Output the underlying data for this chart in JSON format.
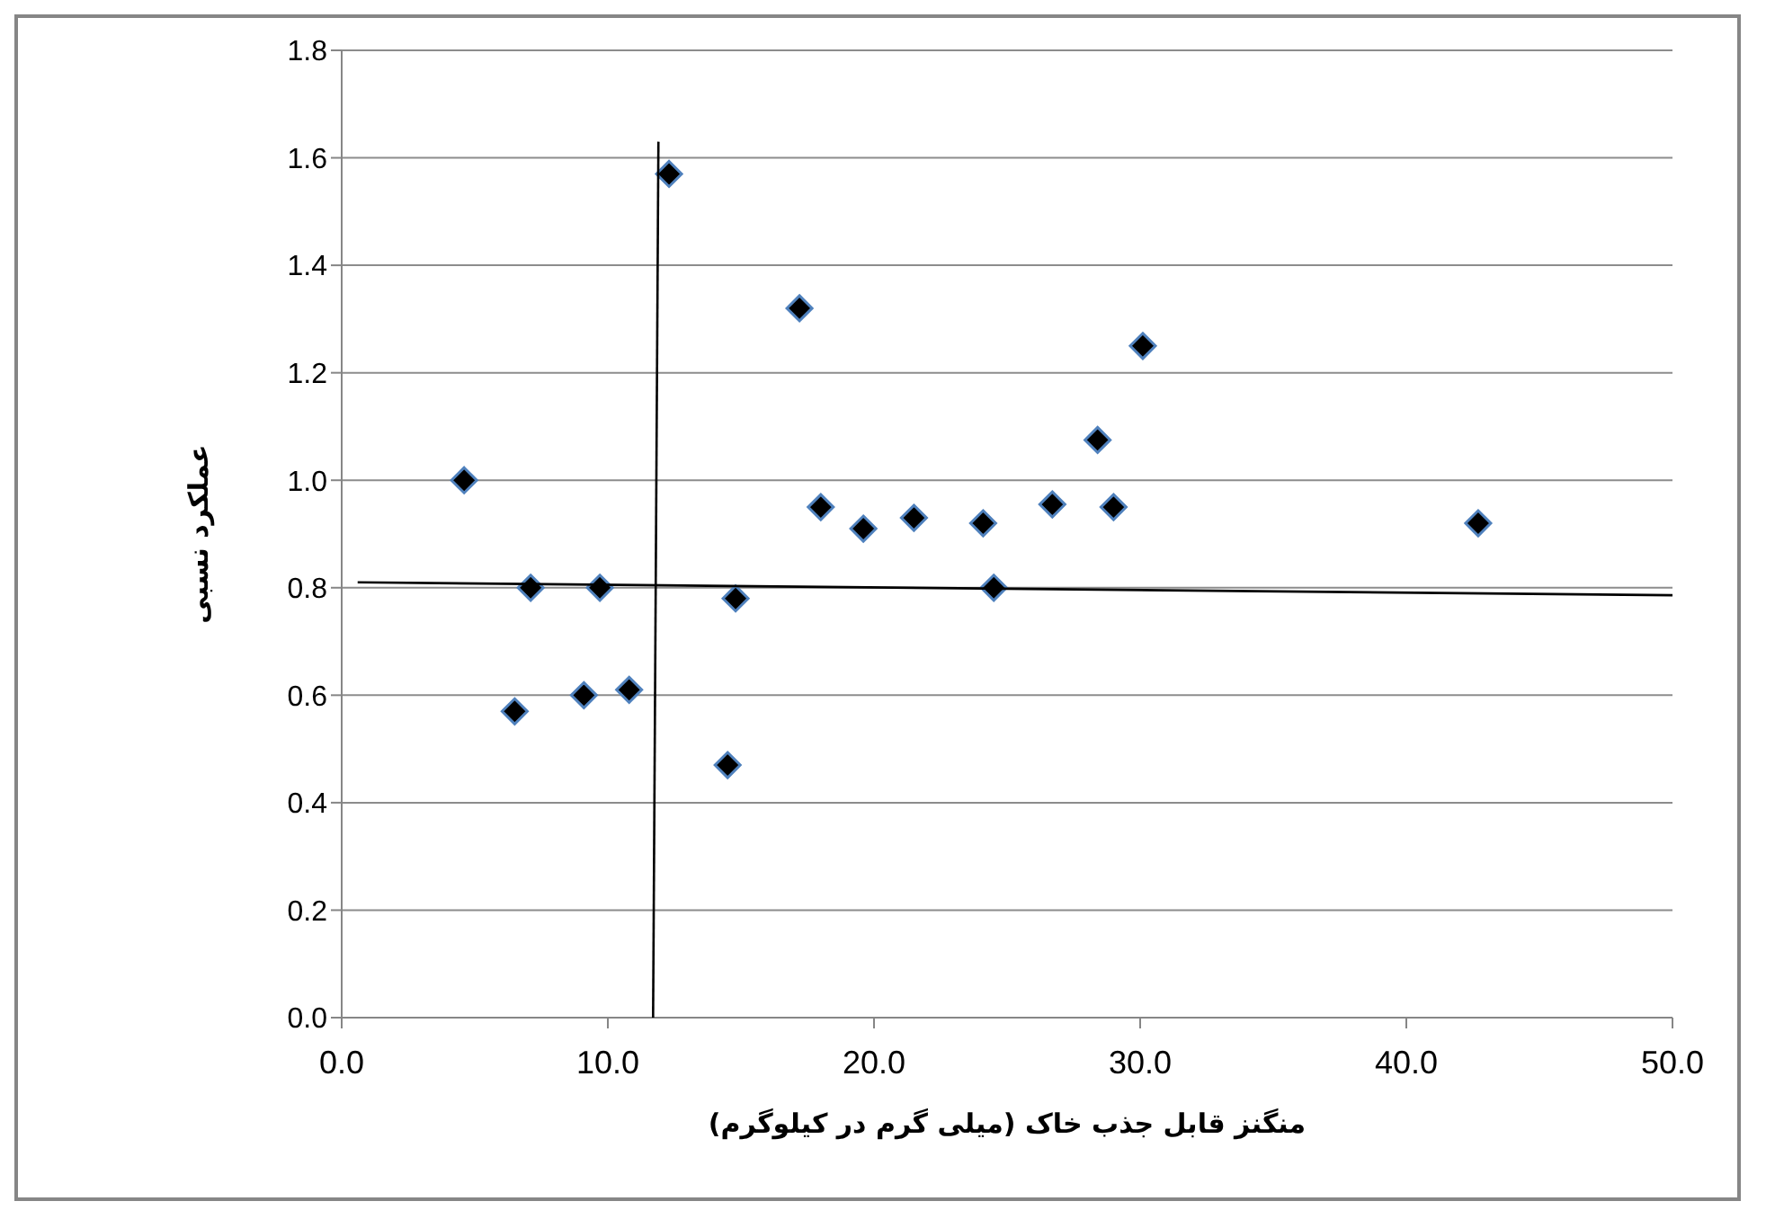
{
  "chart_data": {
    "type": "scatter",
    "xlabel": "منگنز قابل جذب خاک (میلی گرم در کیلوگرم)",
    "ylabel": "عملکرد نسبی",
    "series": [
      {
        "type": "scatter",
        "color": "#000000",
        "x": [
          4.6,
          6.5,
          7.1,
          9.1,
          9.7,
          10.8,
          12.3,
          14.5,
          14.8,
          17.2,
          18.0,
          19.6,
          21.5,
          24.1,
          24.5,
          26.7,
          28.4,
          29.0,
          30.1,
          42.7
        ],
        "values": [
          1.0,
          0.57,
          0.8,
          0.6,
          0.8,
          0.61,
          1.57,
          0.47,
          0.78,
          1.32,
          0.95,
          0.91,
          0.93,
          0.92,
          0.8,
          0.955,
          1.075,
          0.95,
          1.25,
          0.92
        ]
      },
      {
        "type": "line",
        "marker": "none",
        "color": "#000000",
        "x": [
          11.9,
          11.7
        ],
        "values": [
          1.63,
          0
        ]
      },
      {
        "type": "line",
        "marker": "none",
        "color": "#000000",
        "x": [
          0.6,
          50.0
        ],
        "values": [
          0.81,
          0.786
        ]
      }
    ],
    "xlim": [
      0,
      50
    ],
    "xticks": [
      {
        "value": 0,
        "label": "0.0"
      },
      {
        "value": 10,
        "label": "10.0"
      },
      {
        "value": 20,
        "label": "20.0"
      },
      {
        "value": 30,
        "label": "30.0"
      },
      {
        "value": 40,
        "label": "40.0"
      },
      {
        "value": 50,
        "label": "50.0"
      }
    ],
    "ylim": [
      0,
      1.8
    ],
    "yticks": [
      {
        "value": 0,
        "label": "0.0"
      },
      {
        "value": 0.2,
        "label": "0.2"
      },
      {
        "value": 0.4,
        "label": "0.4"
      },
      {
        "value": 0.6,
        "label": "0.6"
      },
      {
        "value": 0.8,
        "label": "0.8"
      },
      {
        "value": 1.0,
        "label": "1.0"
      },
      {
        "value": 1.2,
        "label": "1.2"
      },
      {
        "value": 1.4,
        "label": "1.4"
      },
      {
        "value": 1.6,
        "label": "1.6"
      },
      {
        "value": 1.8,
        "label": "1.8"
      }
    ],
    "grid": "y",
    "marker": "diamond"
  }
}
